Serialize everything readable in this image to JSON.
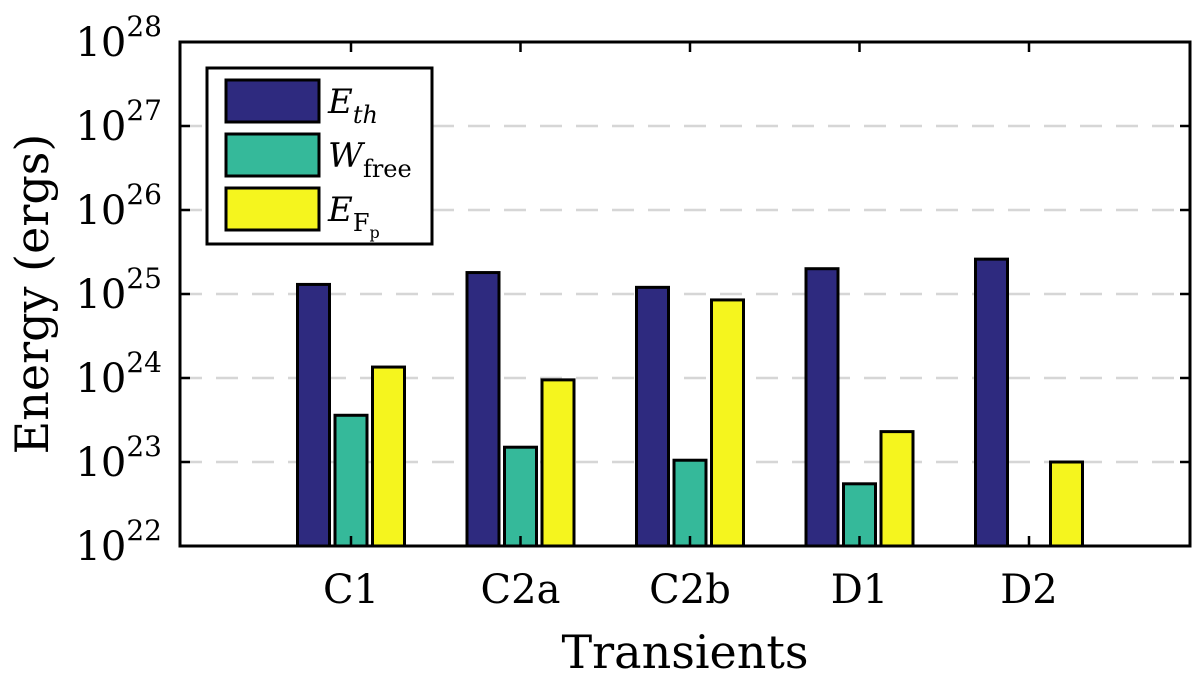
{
  "chart_data": {
    "type": "bar",
    "scale": "log",
    "categories": [
      "C1",
      "C2a",
      "C2b",
      "D1",
      "D2"
    ],
    "series": [
      {
        "name": "E_th",
        "label_main": "E",
        "label_sub": "th",
        "color": "#2e2a7f",
        "values": [
          1.3e+25,
          1.8e+25,
          1.2e+25,
          2e+25,
          2.6e+25
        ]
      },
      {
        "name": "W_free",
        "label_main": "W",
        "label_sub": "free",
        "color": "#35b99a",
        "values": [
          3.6e+23,
          1.5e+23,
          1.05e+23,
          5.5e+22,
          null
        ]
      },
      {
        "name": "E_Fp",
        "label_main": "E",
        "label_sub": "F",
        "label_subsub": "p",
        "color": "#f5f51e",
        "values": [
          1.35e+24,
          9.5e+23,
          8.5e+24,
          2.3e+23,
          1e+23
        ]
      }
    ],
    "xlabel": "Transients",
    "ylabel": "Energy (ergs)",
    "ylim": [
      1e+22,
      1e+28
    ],
    "yticks": [
      {
        "base": "10",
        "exp": "22"
      },
      {
        "base": "10",
        "exp": "23"
      },
      {
        "base": "10",
        "exp": "24"
      },
      {
        "base": "10",
        "exp": "25"
      },
      {
        "base": "10",
        "exp": "26"
      },
      {
        "base": "10",
        "exp": "27"
      },
      {
        "base": "10",
        "exp": "28"
      }
    ],
    "grid": "dashed horizontal",
    "legend_position": "top-left"
  }
}
